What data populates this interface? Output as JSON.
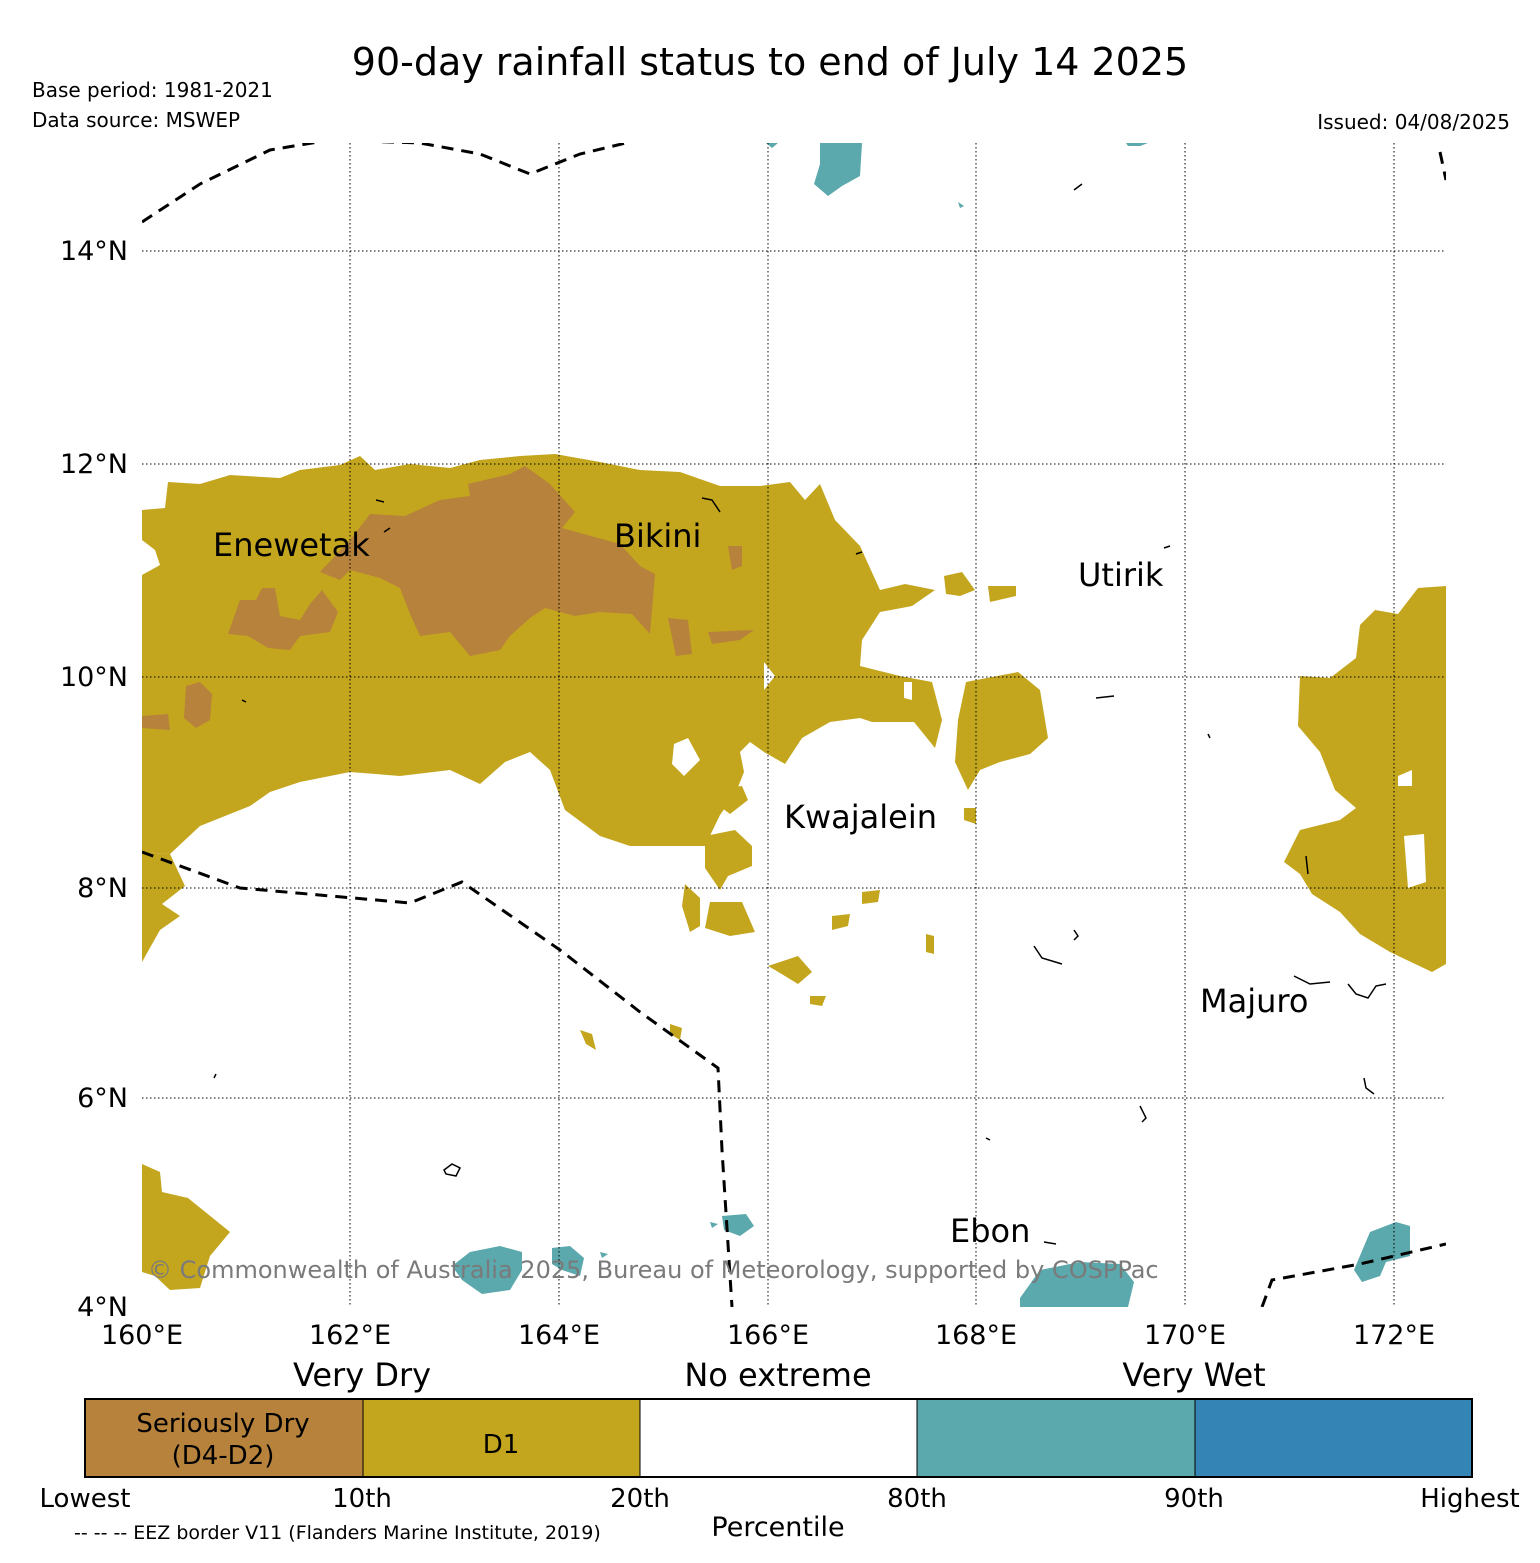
{
  "title": "90-day rainfall status to end of July 14 2025",
  "base_period": "Base period: 1981-2021",
  "data_source": "Data source: MSWEP",
  "issued": "Issued: 04/08/2025",
  "copyright": "© Commonwealth of Australia 2025, Bureau of Meteorology, supported by COSPPac",
  "map": {
    "lat_ticks": [
      "14°N",
      "12°N",
      "10°N",
      "8°N",
      "6°N",
      "4°N"
    ],
    "lon_ticks": [
      "160°E",
      "162°E",
      "164°E",
      "166°E",
      "168°E",
      "170°E",
      "172°E"
    ],
    "places": [
      {
        "name": "Enewetak"
      },
      {
        "name": "Bikini"
      },
      {
        "name": "Utirik"
      },
      {
        "name": "Kwajalein"
      },
      {
        "name": "Majuro"
      },
      {
        "name": "Ebon"
      }
    ]
  },
  "legend": {
    "categories": [
      "Very Dry",
      "No extreme",
      "Very Wet"
    ],
    "boxes": [
      {
        "label_line1": "Seriously Dry",
        "label_line2": "(D4-D2)",
        "color": "#b7823b"
      },
      {
        "label_line1": "D1",
        "label_line2": "",
        "color": "#c4a61e"
      },
      {
        "label_line1": "",
        "label_line2": "",
        "color": "#ffffff"
      },
      {
        "label_line1": "",
        "label_line2": "",
        "color": "#5ba8ad"
      },
      {
        "label_line1": "",
        "label_line2": "",
        "color": "#3484b5"
      }
    ],
    "ticks": [
      "Lowest",
      "10th",
      "20th",
      "80th",
      "90th",
      "Highest"
    ],
    "axis_label": "Percentile"
  },
  "eez_note": "-- -- -- EEZ border V11 (Flanders Marine Institute, 2019)"
}
